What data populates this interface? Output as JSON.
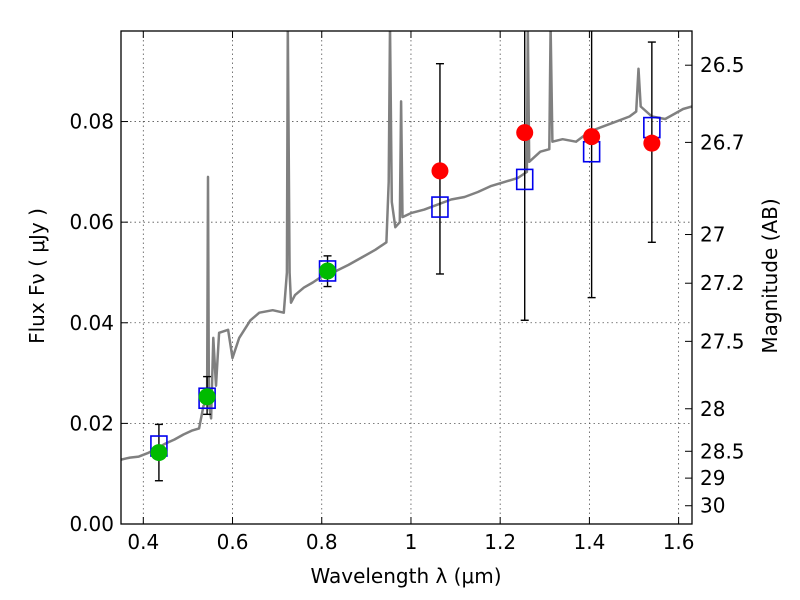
{
  "chart_data": {
    "type": "scatter",
    "xlabel": "Wavelength  λ (μm)",
    "ylabel": "Flux  Fν  ( μJy )",
    "ylabel_right": "Magnitude (AB)",
    "xlim": [
      0.35,
      1.63
    ],
    "ylim": [
      0.0,
      0.098
    ],
    "grid": true,
    "x_ticks": [
      {
        "value": 0.4,
        "label": "0.4"
      },
      {
        "value": 0.6,
        "label": "0.6"
      },
      {
        "value": 0.8,
        "label": "0.8"
      },
      {
        "value": 1.0,
        "label": "1"
      },
      {
        "value": 1.2,
        "label": "1.2"
      },
      {
        "value": 1.4,
        "label": "1.4"
      },
      {
        "value": 1.6,
        "label": "1.6"
      }
    ],
    "y_ticks": [
      {
        "value": 0.0,
        "label": "0.00"
      },
      {
        "value": 0.02,
        "label": "0.02"
      },
      {
        "value": 0.04,
        "label": "0.04"
      },
      {
        "value": 0.06,
        "label": "0.06"
      },
      {
        "value": 0.08,
        "label": "0.08"
      }
    ],
    "magnitude_ticks": [
      {
        "value": 26.5,
        "label": "26.5"
      },
      {
        "value": 26.7,
        "label": "26.7"
      },
      {
        "value": 27.0,
        "label": "27"
      },
      {
        "value": 27.2,
        "label": "27.2"
      },
      {
        "value": 27.5,
        "label": "27.5"
      },
      {
        "value": 28.0,
        "label": "28"
      },
      {
        "value": 28.5,
        "label": "28.5"
      },
      {
        "value": 29.0,
        "label": "29"
      },
      {
        "value": 30.0,
        "label": "30"
      }
    ],
    "colors": {
      "model": "#808080",
      "detections": "#00bb00",
      "upper_estimates": "#ff0000",
      "model_boxes": "#0000ee",
      "errorbars": "#000000",
      "grid": "#555555"
    },
    "series": [
      {
        "name": "model SED",
        "kind": "line",
        "points": [
          [
            0.35,
            0.0128
          ],
          [
            0.37,
            0.0132
          ],
          [
            0.39,
            0.0134
          ],
          [
            0.41,
            0.0141
          ],
          [
            0.43,
            0.015
          ],
          [
            0.45,
            0.016
          ],
          [
            0.47,
            0.0168
          ],
          [
            0.49,
            0.0178
          ],
          [
            0.51,
            0.0186
          ],
          [
            0.525,
            0.019
          ],
          [
            0.535,
            0.0235
          ],
          [
            0.543,
            0.0245
          ],
          [
            0.545,
            0.069
          ],
          [
            0.547,
            0.024
          ],
          [
            0.552,
            0.021
          ],
          [
            0.557,
            0.037
          ],
          [
            0.563,
            0.0275
          ],
          [
            0.57,
            0.038
          ],
          [
            0.59,
            0.0386
          ],
          [
            0.6,
            0.033
          ],
          [
            0.615,
            0.037
          ],
          [
            0.64,
            0.0405
          ],
          [
            0.66,
            0.042
          ],
          [
            0.69,
            0.0425
          ],
          [
            0.715,
            0.042
          ],
          [
            0.722,
            0.05
          ],
          [
            0.724,
            0.099
          ],
          [
            0.728,
            0.05
          ],
          [
            0.731,
            0.044
          ],
          [
            0.74,
            0.0455
          ],
          [
            0.76,
            0.047
          ],
          [
            0.78,
            0.048
          ],
          [
            0.8,
            0.0492
          ],
          [
            0.83,
            0.0502
          ],
          [
            0.86,
            0.0515
          ],
          [
            0.89,
            0.053
          ],
          [
            0.92,
            0.0545
          ],
          [
            0.945,
            0.056
          ],
          [
            0.95,
            0.068
          ],
          [
            0.953,
            0.099
          ],
          [
            0.957,
            0.064
          ],
          [
            0.965,
            0.059
          ],
          [
            0.975,
            0.06
          ],
          [
            0.978,
            0.084
          ],
          [
            0.981,
            0.061
          ],
          [
            1.0,
            0.0618
          ],
          [
            1.03,
            0.0625
          ],
          [
            1.06,
            0.0635
          ],
          [
            1.09,
            0.0645
          ],
          [
            1.12,
            0.065
          ],
          [
            1.15,
            0.066
          ],
          [
            1.18,
            0.0672
          ],
          [
            1.21,
            0.068
          ],
          [
            1.24,
            0.0688
          ],
          [
            1.26,
            0.07
          ],
          [
            1.262,
            0.099
          ],
          [
            1.265,
            0.072
          ],
          [
            1.29,
            0.074
          ],
          [
            1.31,
            0.0745
          ],
          [
            1.313,
            0.099
          ],
          [
            1.317,
            0.076
          ],
          [
            1.34,
            0.0765
          ],
          [
            1.37,
            0.076
          ],
          [
            1.4,
            0.078
          ],
          [
            1.43,
            0.079
          ],
          [
            1.46,
            0.08
          ],
          [
            1.49,
            0.081
          ],
          [
            1.505,
            0.082
          ],
          [
            1.51,
            0.0905
          ],
          [
            1.515,
            0.083
          ],
          [
            1.54,
            0.081
          ],
          [
            1.57,
            0.0805
          ],
          [
            1.59,
            0.0815
          ],
          [
            1.61,
            0.0825
          ],
          [
            1.63,
            0.083
          ]
        ]
      },
      {
        "name": "model photometry",
        "kind": "open-square",
        "x": [
          0.435,
          0.543,
          0.813,
          1.065,
          1.255,
          1.405,
          1.54
        ],
        "y": [
          0.0155,
          0.025,
          0.0503,
          0.063,
          0.0685,
          0.074,
          0.0788
        ]
      },
      {
        "name": "detections",
        "kind": "filled-circle",
        "x": [
          0.435,
          0.543,
          0.813
        ],
        "y": [
          0.0142,
          0.0253,
          0.0503
        ],
        "yerr_low": [
          0.0086,
          0.0218,
          0.0472
        ],
        "yerr_high": [
          0.0198,
          0.0293,
          0.0533
        ]
      },
      {
        "name": "red points",
        "kind": "filled-circle",
        "x": [
          1.065,
          1.255,
          1.405,
          1.54
        ],
        "y": [
          0.0702,
          0.0778,
          0.077,
          0.0757
        ],
        "yerr_low": [
          0.0497,
          0.0405,
          0.045,
          0.056
        ],
        "yerr_high": [
          0.0915,
          0.099,
          0.099,
          0.0958
        ]
      }
    ]
  }
}
